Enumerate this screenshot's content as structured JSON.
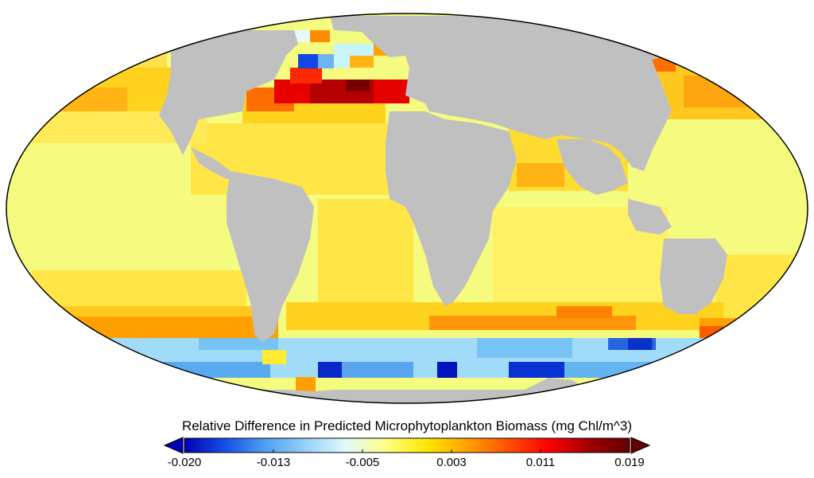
{
  "colorbar": {
    "title": "Relative Difference in Predicted Microphytoplankton Biomass (mg Chl/m^3)",
    "ticks": [
      "-0.020",
      "-0.013",
      "-0.005",
      "0.003",
      "0.011",
      "0.019"
    ],
    "min": -0.02,
    "max": 0.019,
    "stops": [
      "#0000b4",
      "#1450e6",
      "#50a0f0",
      "#96d2fa",
      "#e1fafa",
      "#ffff80",
      "#ffe600",
      "#ffa000",
      "#ff5000",
      "#ff0000",
      "#a00000",
      "#640000"
    ],
    "under_color": "#0000b4",
    "over_color": "#640000"
  },
  "colors": {
    "land": "#c0c0c0",
    "background_ocean": "#f4fb7e",
    "outline": "#000000"
  }
}
